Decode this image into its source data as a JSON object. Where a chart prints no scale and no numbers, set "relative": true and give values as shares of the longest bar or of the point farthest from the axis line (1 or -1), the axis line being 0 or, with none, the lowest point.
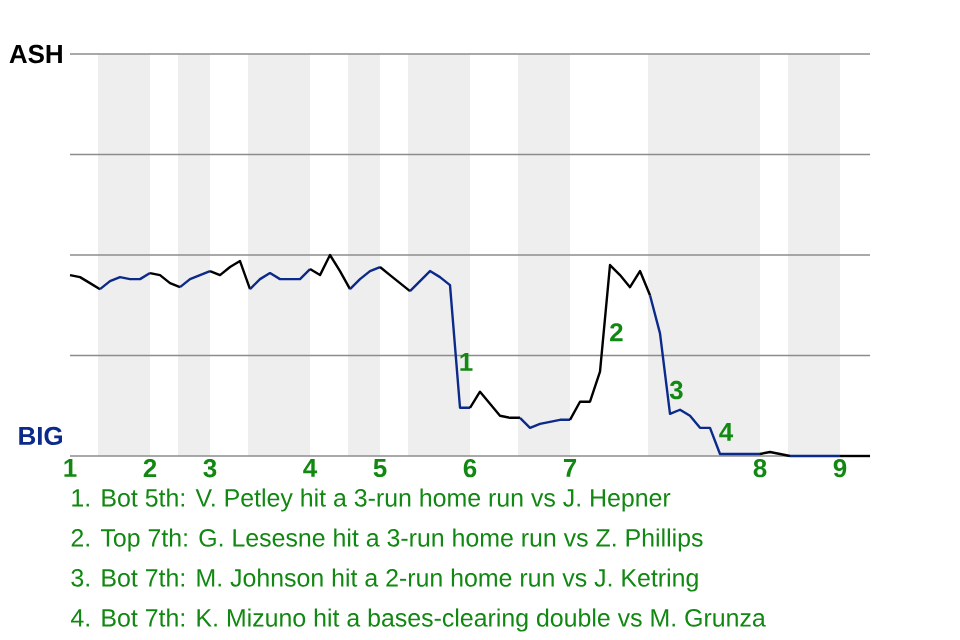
{
  "chart_data": {
    "type": "line",
    "relative": true,
    "categories": [
      "1",
      null,
      null,
      null,
      null,
      null,
      null,
      null,
      "2",
      null,
      null,
      null,
      null,
      null,
      "3",
      null,
      null,
      null,
      null,
      null,
      null,
      null,
      null,
      null,
      "4",
      null,
      null,
      null,
      null,
      null,
      null,
      "5",
      null,
      null,
      null,
      null,
      null,
      null,
      null,
      null,
      "6",
      null,
      null,
      null,
      null,
      null,
      null,
      null,
      null,
      null,
      "7",
      null,
      null,
      null,
      null,
      null,
      null,
      null,
      null,
      null,
      null,
      null,
      null,
      null,
      null,
      null,
      null,
      null,
      null,
      "8",
      null,
      null,
      null,
      null,
      null,
      null,
      null,
      "9",
      null,
      null,
      null
    ],
    "marker": "none",
    "line_style": "solid",
    "ref_lines": [
      {
        "axis": "y",
        "value": 0.5,
        "color": "#8c8c8c"
      },
      {
        "axis": "y",
        "value": 1,
        "color": "#8c8c8c"
      },
      {
        "axis": "y",
        "value": 1.5,
        "color": "#8c8c8c"
      },
      {
        "axis": "y",
        "value": 2,
        "color": "#8c8c8c"
      }
    ],
    "series": [
      {
        "color": "#000000",
        "values": [
          0.9,
          0.89,
          0.86,
          0.83,
          null,
          null,
          null,
          null,
          null,
          null,
          null,
          null,
          null,
          null,
          null,
          null,
          null,
          null,
          null,
          null,
          null,
          null,
          null,
          null,
          null,
          null,
          null,
          null,
          null,
          null,
          null,
          null,
          null,
          null,
          null,
          null,
          null,
          null,
          null,
          null,
          null,
          null,
          null,
          null,
          null,
          null,
          null,
          null,
          null,
          null,
          null,
          null,
          null,
          null,
          null,
          null,
          null,
          null,
          null,
          null,
          null,
          null,
          null,
          null,
          null,
          null,
          null,
          null,
          null,
          null,
          null,
          null,
          null,
          null,
          null,
          null,
          null,
          null,
          null,
          null,
          null
        ]
      },
      {
        "color": "#0b2a8a",
        "values": [
          null,
          null,
          null,
          0.83,
          0.87,
          0.89,
          0.88,
          0.88,
          0.91,
          null,
          null,
          null,
          null,
          null,
          null,
          null,
          null,
          null,
          null,
          null,
          null,
          null,
          null,
          null,
          null,
          null,
          null,
          null,
          null,
          null,
          null,
          null,
          null,
          null,
          null,
          null,
          null,
          null,
          null,
          null,
          null,
          null,
          null,
          null,
          null,
          null,
          null,
          null,
          null,
          null,
          null,
          null,
          null,
          null,
          null,
          null,
          null,
          null,
          null,
          null,
          null,
          null,
          null,
          null,
          null,
          null,
          null,
          null,
          null,
          null,
          null,
          null,
          null,
          null,
          null,
          null,
          null,
          null,
          null,
          null,
          null
        ]
      },
      {
        "color": "#000000",
        "values": [
          null,
          null,
          null,
          null,
          null,
          null,
          null,
          null,
          0.91,
          0.9,
          0.86,
          0.84,
          null,
          null,
          null,
          null,
          null,
          null,
          null,
          null,
          null,
          null,
          null,
          null,
          null,
          null,
          null,
          null,
          null,
          null,
          null,
          null,
          null,
          null,
          null,
          null,
          null,
          null,
          null,
          null,
          null,
          null,
          null,
          null,
          null,
          null,
          null,
          null,
          null,
          null,
          null,
          null,
          null,
          null,
          null,
          null,
          null,
          null,
          null,
          null,
          null,
          null,
          null,
          null,
          null,
          null,
          null,
          null,
          null,
          null,
          null,
          null,
          null,
          null,
          null,
          null,
          null,
          null,
          null,
          null,
          null
        ]
      },
      {
        "color": "#0b2a8a",
        "values": [
          null,
          null,
          null,
          null,
          null,
          null,
          null,
          null,
          null,
          null,
          null,
          0.84,
          0.88,
          0.9,
          0.92,
          null,
          null,
          null,
          null,
          null,
          null,
          null,
          null,
          null,
          null,
          null,
          null,
          null,
          null,
          null,
          null,
          null,
          null,
          null,
          null,
          null,
          null,
          null,
          null,
          null,
          null,
          null,
          null,
          null,
          null,
          null,
          null,
          null,
          null,
          null,
          null,
          null,
          null,
          null,
          null,
          null,
          null,
          null,
          null,
          null,
          null,
          null,
          null,
          null,
          null,
          null,
          null,
          null,
          null,
          null,
          null,
          null,
          null,
          null,
          null,
          null,
          null,
          null,
          null,
          null,
          null
        ]
      },
      {
        "color": "#000000",
        "values": [
          null,
          null,
          null,
          null,
          null,
          null,
          null,
          null,
          null,
          null,
          null,
          null,
          null,
          null,
          0.92,
          0.9,
          0.94,
          0.97,
          0.83,
          null,
          null,
          null,
          null,
          null,
          null,
          null,
          null,
          null,
          null,
          null,
          null,
          null,
          null,
          null,
          null,
          null,
          null,
          null,
          null,
          null,
          null,
          null,
          null,
          null,
          null,
          null,
          null,
          null,
          null,
          null,
          null,
          null,
          null,
          null,
          null,
          null,
          null,
          null,
          null,
          null,
          null,
          null,
          null,
          null,
          null,
          null,
          null,
          null,
          null,
          null,
          null,
          null,
          null,
          null,
          null,
          null,
          null,
          null,
          null,
          null,
          null
        ]
      },
      {
        "color": "#0b2a8a",
        "values": [
          null,
          null,
          null,
          null,
          null,
          null,
          null,
          null,
          null,
          null,
          null,
          null,
          null,
          null,
          null,
          null,
          null,
          null,
          0.83,
          0.88,
          0.91,
          0.88,
          0.88,
          0.88,
          0.93,
          null,
          null,
          null,
          null,
          null,
          null,
          null,
          null,
          null,
          null,
          null,
          null,
          null,
          null,
          null,
          null,
          null,
          null,
          null,
          null,
          null,
          null,
          null,
          null,
          null,
          null,
          null,
          null,
          null,
          null,
          null,
          null,
          null,
          null,
          null,
          null,
          null,
          null,
          null,
          null,
          null,
          null,
          null,
          null,
          null,
          null,
          null,
          null,
          null,
          null,
          null,
          null,
          null,
          null,
          null,
          null
        ]
      },
      {
        "color": "#000000",
        "values": [
          null,
          null,
          null,
          null,
          null,
          null,
          null,
          null,
          null,
          null,
          null,
          null,
          null,
          null,
          null,
          null,
          null,
          null,
          null,
          null,
          null,
          null,
          null,
          null,
          0.93,
          0.9,
          1,
          0.92,
          0.83,
          null,
          null,
          null,
          null,
          null,
          null,
          null,
          null,
          null,
          null,
          null,
          null,
          null,
          null,
          null,
          null,
          null,
          null,
          null,
          null,
          null,
          null,
          null,
          null,
          null,
          null,
          null,
          null,
          null,
          null,
          null,
          null,
          null,
          null,
          null,
          null,
          null,
          null,
          null,
          null,
          null,
          null,
          null,
          null,
          null,
          null,
          null,
          null,
          null,
          null,
          null,
          null
        ]
      },
      {
        "color": "#0b2a8a",
        "values": [
          null,
          null,
          null,
          null,
          null,
          null,
          null,
          null,
          null,
          null,
          null,
          null,
          null,
          null,
          null,
          null,
          null,
          null,
          null,
          null,
          null,
          null,
          null,
          null,
          null,
          null,
          null,
          null,
          0.83,
          0.88,
          0.92,
          0.94,
          null,
          null,
          null,
          null,
          null,
          null,
          null,
          null,
          null,
          null,
          null,
          null,
          null,
          null,
          null,
          null,
          null,
          null,
          null,
          null,
          null,
          null,
          null,
          null,
          null,
          null,
          null,
          null,
          null,
          null,
          null,
          null,
          null,
          null,
          null,
          null,
          null,
          null,
          null,
          null,
          null,
          null,
          null,
          null,
          null,
          null,
          null,
          null,
          null
        ]
      },
      {
        "color": "#000000",
        "values": [
          null,
          null,
          null,
          null,
          null,
          null,
          null,
          null,
          null,
          null,
          null,
          null,
          null,
          null,
          null,
          null,
          null,
          null,
          null,
          null,
          null,
          null,
          null,
          null,
          null,
          null,
          null,
          null,
          null,
          null,
          null,
          0.94,
          0.9,
          0.86,
          0.82,
          null,
          null,
          null,
          null,
          null,
          null,
          null,
          null,
          null,
          null,
          null,
          null,
          null,
          null,
          null,
          null,
          null,
          null,
          null,
          null,
          null,
          null,
          null,
          null,
          null,
          null,
          null,
          null,
          null,
          null,
          null,
          null,
          null,
          null,
          null,
          null,
          null,
          null,
          null,
          null,
          null,
          null,
          null,
          null,
          null,
          null
        ]
      },
      {
        "color": "#0b2a8a",
        "values": [
          null,
          null,
          null,
          null,
          null,
          null,
          null,
          null,
          null,
          null,
          null,
          null,
          null,
          null,
          null,
          null,
          null,
          null,
          null,
          null,
          null,
          null,
          null,
          null,
          null,
          null,
          null,
          null,
          null,
          null,
          null,
          null,
          null,
          null,
          0.82,
          0.87,
          0.92,
          0.89,
          0.85,
          0.24,
          0.24,
          null,
          null,
          null,
          null,
          null,
          null,
          null,
          null,
          null,
          null,
          null,
          null,
          null,
          null,
          null,
          null,
          null,
          null,
          null,
          null,
          null,
          null,
          null,
          null,
          null,
          null,
          null,
          null,
          null,
          null,
          null,
          null,
          null,
          null,
          null,
          null,
          null,
          null,
          null,
          null
        ]
      },
      {
        "color": "#000000",
        "values": [
          null,
          null,
          null,
          null,
          null,
          null,
          null,
          null,
          null,
          null,
          null,
          null,
          null,
          null,
          null,
          null,
          null,
          null,
          null,
          null,
          null,
          null,
          null,
          null,
          null,
          null,
          null,
          null,
          null,
          null,
          null,
          null,
          null,
          null,
          null,
          null,
          null,
          null,
          null,
          null,
          0.24,
          0.32,
          0.26,
          0.2,
          0.19,
          0.19,
          null,
          null,
          null,
          null,
          null,
          null,
          null,
          null,
          null,
          null,
          null,
          null,
          null,
          null,
          null,
          null,
          null,
          null,
          null,
          null,
          null,
          null,
          null,
          null,
          null,
          null,
          null,
          null,
          null,
          null,
          null,
          null,
          null,
          null,
          null
        ]
      },
      {
        "color": "#0b2a8a",
        "values": [
          null,
          null,
          null,
          null,
          null,
          null,
          null,
          null,
          null,
          null,
          null,
          null,
          null,
          null,
          null,
          null,
          null,
          null,
          null,
          null,
          null,
          null,
          null,
          null,
          null,
          null,
          null,
          null,
          null,
          null,
          null,
          null,
          null,
          null,
          null,
          null,
          null,
          null,
          null,
          null,
          null,
          null,
          null,
          null,
          null,
          0.19,
          0.14,
          0.16,
          0.17,
          0.18,
          0.18,
          null,
          null,
          null,
          null,
          null,
          null,
          null,
          null,
          null,
          null,
          null,
          null,
          null,
          null,
          null,
          null,
          null,
          null,
          null,
          null,
          null,
          null,
          null,
          null,
          null,
          null,
          null,
          null,
          null,
          null
        ]
      },
      {
        "color": "#000000",
        "values": [
          null,
          null,
          null,
          null,
          null,
          null,
          null,
          null,
          null,
          null,
          null,
          null,
          null,
          null,
          null,
          null,
          null,
          null,
          null,
          null,
          null,
          null,
          null,
          null,
          null,
          null,
          null,
          null,
          null,
          null,
          null,
          null,
          null,
          null,
          null,
          null,
          null,
          null,
          null,
          null,
          null,
          null,
          null,
          null,
          null,
          null,
          null,
          null,
          null,
          null,
          0.18,
          0.27,
          0.27,
          0.42,
          0.95,
          0.9,
          0.84,
          0.92,
          0.8,
          null,
          null,
          null,
          null,
          null,
          null,
          null,
          null,
          null,
          null,
          null,
          null,
          null,
          null,
          null,
          null,
          null,
          null,
          null,
          null,
          null,
          null
        ]
      },
      {
        "color": "#0b2a8a",
        "values": [
          null,
          null,
          null,
          null,
          null,
          null,
          null,
          null,
          null,
          null,
          null,
          null,
          null,
          null,
          null,
          null,
          null,
          null,
          null,
          null,
          null,
          null,
          null,
          null,
          null,
          null,
          null,
          null,
          null,
          null,
          null,
          null,
          null,
          null,
          null,
          null,
          null,
          null,
          null,
          null,
          null,
          null,
          null,
          null,
          null,
          null,
          null,
          null,
          null,
          null,
          null,
          null,
          null,
          null,
          null,
          null,
          null,
          null,
          0.8,
          0.61,
          0.21,
          0.23,
          0.2,
          0.14,
          0.14,
          0.01,
          0.01,
          0.01,
          0.01,
          0.01,
          null,
          null,
          null,
          null,
          null,
          null,
          null,
          null,
          null,
          null,
          null
        ]
      },
      {
        "color": "#000000",
        "values": [
          null,
          null,
          null,
          null,
          null,
          null,
          null,
          null,
          null,
          null,
          null,
          null,
          null,
          null,
          null,
          null,
          null,
          null,
          null,
          null,
          null,
          null,
          null,
          null,
          null,
          null,
          null,
          null,
          null,
          null,
          null,
          null,
          null,
          null,
          null,
          null,
          null,
          null,
          null,
          null,
          null,
          null,
          null,
          null,
          null,
          null,
          null,
          null,
          null,
          null,
          null,
          null,
          null,
          null,
          null,
          null,
          null,
          null,
          null,
          null,
          null,
          null,
          null,
          null,
          null,
          null,
          null,
          null,
          null,
          0.01,
          0.02,
          0.01,
          0,
          null,
          null,
          null,
          null,
          null,
          null,
          null,
          null
        ]
      },
      {
        "color": "#0b2a8a",
        "values": [
          null,
          null,
          null,
          null,
          null,
          null,
          null,
          null,
          null,
          null,
          null,
          null,
          null,
          null,
          null,
          null,
          null,
          null,
          null,
          null,
          null,
          null,
          null,
          null,
          null,
          null,
          null,
          null,
          null,
          null,
          null,
          null,
          null,
          null,
          null,
          null,
          null,
          null,
          null,
          null,
          null,
          null,
          null,
          null,
          null,
          null,
          null,
          null,
          null,
          null,
          null,
          null,
          null,
          null,
          null,
          null,
          null,
          null,
          null,
          null,
          null,
          null,
          null,
          null,
          null,
          null,
          null,
          null,
          null,
          null,
          null,
          null,
          0,
          0,
          0,
          0,
          0,
          0,
          null,
          null,
          null
        ]
      },
      {
        "color": "#000000",
        "values": [
          null,
          null,
          null,
          null,
          null,
          null,
          null,
          null,
          null,
          null,
          null,
          null,
          null,
          null,
          null,
          null,
          null,
          null,
          null,
          null,
          null,
          null,
          null,
          null,
          null,
          null,
          null,
          null,
          null,
          null,
          null,
          null,
          null,
          null,
          null,
          null,
          null,
          null,
          null,
          null,
          null,
          null,
          null,
          null,
          null,
          null,
          null,
          null,
          null,
          null,
          null,
          null,
          null,
          null,
          null,
          null,
          null,
          null,
          null,
          null,
          null,
          null,
          null,
          null,
          null,
          null,
          null,
          null,
          null,
          null,
          null,
          null,
          null,
          null,
          null,
          null,
          null,
          0,
          0,
          0,
          0
        ]
      }
    ],
    "annotations": [
      "ASH",
      "BIG",
      "1",
      "2",
      "3",
      "4",
      "1. Bot 5th: V. Petley hit a 3-run home run vs J. Hepner",
      "2. Top 7th: G. Lesesne hit a 3-run home run vs Z. Phillips",
      "3. Bot 7th: M. Johnson hit a 2-run home run vs J. Ketring",
      "4. Bot 7th: K. Mizuno hit a bases-clearing double vs M. Grunza"
    ]
  }
}
